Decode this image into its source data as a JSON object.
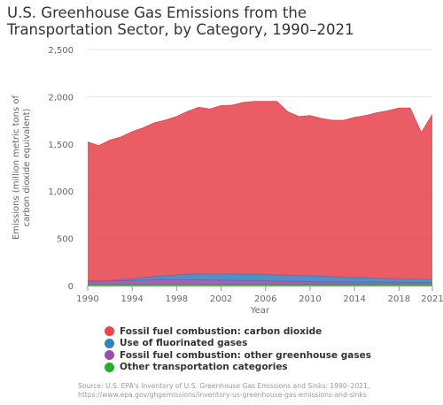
{
  "title": {
    "line1": "U.S. Greenhouse Gas Emissions from the",
    "line2": "Transportation Sector, by Category, 1990–2021"
  },
  "source": {
    "line1": "Source: U.S. EPA's Inventory of U.S. Greenhouse Gas Emissions and Sinks: 1990–2021,",
    "line2": "https://www.epa.gov/ghgemissions/inventory-us-greenhouse-gas-emissions-and-sinks"
  },
  "chart_data": {
    "type": "area",
    "stacked": true,
    "xlabel": "Year",
    "ylabel": [
      "Emissions (million metric tons of",
      "carbon dioxide equivalent)"
    ],
    "ylim": [
      0,
      2500
    ],
    "yticks": [
      0,
      500,
      1000,
      1500,
      2000,
      2500
    ],
    "ytick_labels": [
      "0",
      "500",
      "1,000",
      "1,500",
      "2,000",
      "2,500"
    ],
    "xticks": [
      1990,
      1994,
      1998,
      2002,
      2006,
      2010,
      2014,
      2018,
      2021
    ],
    "grid": true,
    "legend": "bottom",
    "x": [
      1990,
      1991,
      1992,
      1993,
      1994,
      1995,
      1996,
      1997,
      1998,
      1999,
      2000,
      2001,
      2002,
      2003,
      2004,
      2005,
      2006,
      2007,
      2008,
      2009,
      2010,
      2011,
      2012,
      2013,
      2014,
      2015,
      2016,
      2017,
      2018,
      2019,
      2020,
      2021
    ],
    "series": [
      {
        "name": "Other transportation categories",
        "color": "#2caa2c",
        "values": [
          15,
          15,
          15,
          15,
          15,
          15,
          15,
          15,
          15,
          15,
          15,
          15,
          15,
          15,
          15,
          15,
          15,
          15,
          15,
          15,
          15,
          15,
          15,
          15,
          15,
          15,
          15,
          15,
          15,
          15,
          15,
          15
        ]
      },
      {
        "name": "Fossil fuel combustion: other greenhouse gases",
        "color": "#9b4ca8",
        "values": [
          30,
          31,
          33,
          36,
          40,
          44,
          47,
          48,
          48,
          47,
          46,
          45,
          43,
          41,
          39,
          37,
          35,
          33,
          31,
          29,
          27,
          26,
          25,
          24,
          23,
          22,
          21,
          20,
          20,
          19,
          18,
          18
        ]
      },
      {
        "name": "Use of fluorinated gases",
        "color": "#3a7fbf",
        "values": [
          5,
          5,
          7,
          12,
          19,
          27,
          36,
          44,
          52,
          58,
          62,
          64,
          66,
          67,
          68,
          68,
          68,
          67,
          65,
          63,
          62,
          60,
          56,
          52,
          49,
          46,
          43,
          41,
          39,
          37,
          35,
          34
        ]
      },
      {
        "name": "Fossil fuel combustion: carbon dioxide",
        "color": "#e8474f",
        "values": [
          1470,
          1430,
          1485,
          1510,
          1555,
          1585,
          1625,
          1645,
          1675,
          1725,
          1765,
          1745,
          1781,
          1787,
          1818,
          1830,
          1832,
          1835,
          1729,
          1683,
          1696,
          1669,
          1654,
          1659,
          1693,
          1717,
          1751,
          1774,
          1806,
          1809,
          1552,
          1743
        ]
      }
    ]
  }
}
